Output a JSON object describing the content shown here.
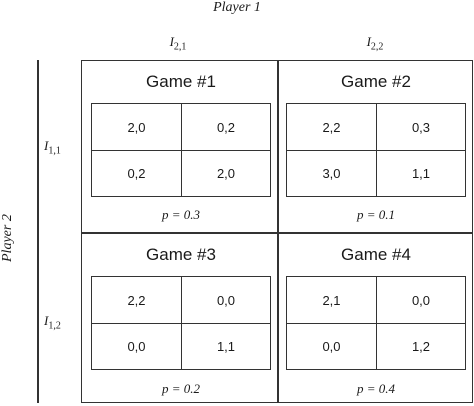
{
  "labels": {
    "player1": "Player 1",
    "player2": "Player 2",
    "col1": "I",
    "col1_sub": "2,1",
    "col2": "I",
    "col2_sub": "2,2",
    "row1": "I",
    "row1_sub": "1,1",
    "row2": "I",
    "row2_sub": "1,2"
  },
  "games": [
    {
      "title": "Game #1",
      "cells": [
        "2,0",
        "0,2",
        "0,2",
        "2,0"
      ],
      "prob": "p = 0.3"
    },
    {
      "title": "Game #2",
      "cells": [
        "2,2",
        "0,3",
        "3,0",
        "1,1"
      ],
      "prob": "p = 0.1"
    },
    {
      "title": "Game #3",
      "cells": [
        "2,2",
        "0,0",
        "0,0",
        "1,1"
      ],
      "prob": "p = 0.2"
    },
    {
      "title": "Game #4",
      "cells": [
        "2,1",
        "0,0",
        "0,0",
        "1,2"
      ],
      "prob": "p = 0.4"
    }
  ]
}
